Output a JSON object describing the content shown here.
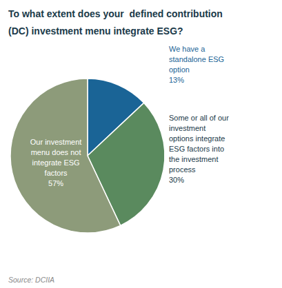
{
  "chart_data": {
    "type": "pie",
    "title": "To what extent does your  defined contribution\n(DC) investment menu integrate ESG?",
    "categories": [
      "We have a\nstandalone ESG\noption",
      "Some or all of our\ninvestment\noptions integrate\nESG factors into\nthe investment\nprocess",
      "Our investment\nmenu does not\nintegrate ESG\nfactors"
    ],
    "values": [
      13,
      30,
      57
    ],
    "value_labels": [
      "13%",
      "30%",
      "57%"
    ],
    "data_labels": true,
    "colors": [
      "#1a6496",
      "#5a8a5e",
      "#8d9b7a"
    ],
    "annotations": [
      "Source: DCIIA"
    ]
  }
}
